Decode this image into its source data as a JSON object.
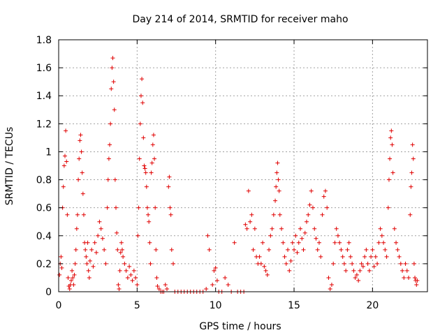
{
  "chart_data": {
    "type": "scatter",
    "title": "Day 214 of 2014, SRMTID for receiver maho",
    "xlabel": "GPS time / hours",
    "ylabel": "SRMTID / TECUs",
    "xlim": [
      0,
      23.5
    ],
    "ylim": [
      0,
      1.8
    ],
    "xticks": [
      0,
      5,
      10,
      15,
      20
    ],
    "xtick_labels": [
      "0",
      "5",
      "10",
      "15",
      "20"
    ],
    "yticks": [
      0,
      0.2,
      0.4,
      0.6,
      0.8,
      1.0,
      1.2,
      1.4,
      1.6,
      1.8
    ],
    "ytick_labels": [
      "0",
      "0.2",
      "0.4",
      "0.6",
      "0.8",
      "1",
      "1.2",
      "1.4",
      "1.6",
      "1.8"
    ],
    "grid": true,
    "marker": "+",
    "marker_color": "#e00000",
    "series": [
      {
        "name": "SRMTID",
        "points": [
          [
            0.05,
            0.12
          ],
          [
            0.1,
            0.2
          ],
          [
            0.15,
            0.25
          ],
          [
            0.2,
            0.17
          ],
          [
            0.25,
            0.6
          ],
          [
            0.3,
            0.75
          ],
          [
            0.35,
            0.9
          ],
          [
            0.4,
            0.97
          ],
          [
            0.45,
            1.15
          ],
          [
            0.5,
            0.93
          ],
          [
            0.55,
            0.55
          ],
          [
            0.6,
            0.1
          ],
          [
            0.65,
            0.04
          ],
          [
            0.7,
            0.02
          ],
          [
            0.75,
            0.05
          ],
          [
            0.8,
            0.08
          ],
          [
            0.85,
            0.15
          ],
          [
            0.9,
            0.1
          ],
          [
            0.95,
            0.05
          ],
          [
            1.0,
            0.12
          ],
          [
            1.05,
            0.2
          ],
          [
            1.1,
            0.3
          ],
          [
            1.15,
            0.45
          ],
          [
            1.2,
            0.55
          ],
          [
            1.25,
            0.8
          ],
          [
            1.3,
            0.95
          ],
          [
            1.35,
            1.08
          ],
          [
            1.4,
            1.12
          ],
          [
            1.45,
            1.0
          ],
          [
            1.5,
            0.85
          ],
          [
            1.55,
            0.7
          ],
          [
            1.6,
            0.55
          ],
          [
            1.65,
            0.35
          ],
          [
            1.7,
            0.3
          ],
          [
            1.75,
            0.25
          ],
          [
            1.8,
            0.2
          ],
          [
            1.85,
            0.35
          ],
          [
            1.9,
            0.15
          ],
          [
            1.95,
            0.1
          ],
          [
            2.0,
            0.22
          ],
          [
            2.1,
            0.3
          ],
          [
            2.2,
            0.18
          ],
          [
            2.3,
            0.35
          ],
          [
            2.4,
            0.28
          ],
          [
            2.5,
            0.4
          ],
          [
            2.6,
            0.5
          ],
          [
            2.7,
            0.45
          ],
          [
            2.8,
            0.38
          ],
          [
            2.9,
            0.3
          ],
          [
            3.0,
            0.2
          ],
          [
            3.1,
            0.6
          ],
          [
            3.15,
            0.8
          ],
          [
            3.2,
            0.95
          ],
          [
            3.25,
            1.05
          ],
          [
            3.3,
            1.2
          ],
          [
            3.35,
            1.45
          ],
          [
            3.4,
            1.6
          ],
          [
            3.45,
            1.67
          ],
          [
            3.5,
            1.5
          ],
          [
            3.55,
            1.3
          ],
          [
            3.6,
            0.8
          ],
          [
            3.65,
            0.6
          ],
          [
            3.7,
            0.42
          ],
          [
            3.75,
            0.3
          ],
          [
            3.8,
            0.05
          ],
          [
            3.85,
            0.02
          ],
          [
            3.9,
            0.15
          ],
          [
            3.95,
            0.28
          ],
          [
            4.0,
            0.35
          ],
          [
            4.05,
            0.3
          ],
          [
            4.1,
            0.25
          ],
          [
            4.2,
            0.2
          ],
          [
            4.3,
            0.15
          ],
          [
            4.4,
            0.1
          ],
          [
            4.5,
            0.18
          ],
          [
            4.6,
            0.12
          ],
          [
            4.7,
            0.08
          ],
          [
            4.8,
            0.15
          ],
          [
            4.9,
            0.1
          ],
          [
            5.0,
            0.05
          ],
          [
            5.05,
            0.4
          ],
          [
            5.1,
            0.6
          ],
          [
            5.15,
            0.95
          ],
          [
            5.2,
            1.2
          ],
          [
            5.25,
            1.4
          ],
          [
            5.3,
            1.52
          ],
          [
            5.35,
            1.35
          ],
          [
            5.4,
            1.1
          ],
          [
            5.45,
            0.9
          ],
          [
            5.5,
            0.88
          ],
          [
            5.55,
            0.85
          ],
          [
            5.6,
            0.75
          ],
          [
            5.65,
            0.6
          ],
          [
            5.7,
            0.55
          ],
          [
            5.75,
            0.5
          ],
          [
            5.8,
            0.35
          ],
          [
            5.85,
            0.2
          ],
          [
            5.9,
            0.85
          ],
          [
            5.95,
            0.92
          ],
          [
            6.0,
            1.05
          ],
          [
            6.05,
            1.12
          ],
          [
            6.1,
            0.95
          ],
          [
            6.15,
            0.6
          ],
          [
            6.2,
            0.3
          ],
          [
            6.25,
            0.1
          ],
          [
            6.3,
            0.04
          ],
          [
            6.4,
            0.02
          ],
          [
            6.5,
            0.0
          ],
          [
            6.6,
            0.0
          ],
          [
            6.7,
            0.0
          ],
          [
            6.8,
            0.05
          ],
          [
            6.9,
            0.02
          ],
          [
            7.0,
            0.75
          ],
          [
            7.05,
            0.82
          ],
          [
            7.1,
            0.6
          ],
          [
            7.15,
            0.55
          ],
          [
            7.2,
            0.3
          ],
          [
            7.3,
            0.2
          ],
          [
            7.4,
            0.0
          ],
          [
            7.6,
            0.0
          ],
          [
            7.8,
            0.0
          ],
          [
            8.0,
            0.0
          ],
          [
            8.2,
            0.0
          ],
          [
            8.4,
            0.0
          ],
          [
            8.6,
            0.0
          ],
          [
            8.8,
            0.0
          ],
          [
            9.0,
            0.0
          ],
          [
            9.2,
            0.0
          ],
          [
            9.4,
            0.02
          ],
          [
            9.5,
            0.4
          ],
          [
            9.6,
            0.3
          ],
          [
            9.8,
            0.05
          ],
          [
            9.9,
            0.15
          ],
          [
            10.0,
            0.17
          ],
          [
            10.1,
            0.08
          ],
          [
            10.2,
            0.0
          ],
          [
            10.4,
            0.0
          ],
          [
            10.6,
            0.1
          ],
          [
            10.8,
            0.05
          ],
          [
            11.0,
            0.0
          ],
          [
            11.2,
            0.35
          ],
          [
            11.4,
            0.0
          ],
          [
            11.6,
            0.0
          ],
          [
            11.8,
            0.0
          ],
          [
            11.9,
            0.48
          ],
          [
            12.0,
            0.45
          ],
          [
            12.1,
            0.72
          ],
          [
            12.2,
            0.5
          ],
          [
            12.3,
            0.55
          ],
          [
            12.4,
            0.3
          ],
          [
            12.5,
            0.45
          ],
          [
            12.6,
            0.25
          ],
          [
            12.7,
            0.2
          ],
          [
            12.8,
            0.25
          ],
          [
            12.9,
            0.2
          ],
          [
            13.0,
            0.35
          ],
          [
            13.1,
            0.18
          ],
          [
            13.2,
            0.15
          ],
          [
            13.3,
            0.12
          ],
          [
            13.4,
            0.3
          ],
          [
            13.5,
            0.4
          ],
          [
            13.6,
            0.45
          ],
          [
            13.7,
            0.55
          ],
          [
            13.8,
            0.65
          ],
          [
            13.85,
            0.75
          ],
          [
            13.9,
            0.85
          ],
          [
            13.95,
            0.92
          ],
          [
            14.0,
            0.8
          ],
          [
            14.05,
            0.72
          ],
          [
            14.1,
            0.55
          ],
          [
            14.2,
            0.45
          ],
          [
            14.3,
            0.35
          ],
          [
            14.4,
            0.25
          ],
          [
            14.5,
            0.2
          ],
          [
            14.6,
            0.3
          ],
          [
            14.7,
            0.15
          ],
          [
            14.8,
            0.22
          ],
          [
            14.9,
            0.35
          ],
          [
            15.0,
            0.3
          ],
          [
            15.1,
            0.4
          ],
          [
            15.2,
            0.28
          ],
          [
            15.3,
            0.35
          ],
          [
            15.4,
            0.45
          ],
          [
            15.5,
            0.38
          ],
          [
            15.6,
            0.3
          ],
          [
            15.7,
            0.42
          ],
          [
            15.8,
            0.5
          ],
          [
            15.9,
            0.55
          ],
          [
            16.0,
            0.62
          ],
          [
            16.1,
            0.72
          ],
          [
            16.2,
            0.6
          ],
          [
            16.3,
            0.45
          ],
          [
            16.4,
            0.38
          ],
          [
            16.5,
            0.3
          ],
          [
            16.6,
            0.35
          ],
          [
            16.7,
            0.25
          ],
          [
            16.8,
            0.55
          ],
          [
            16.9,
            0.68
          ],
          [
            17.0,
            0.72
          ],
          [
            17.1,
            0.6
          ],
          [
            17.2,
            0.1
          ],
          [
            17.3,
            0.02
          ],
          [
            17.4,
            0.05
          ],
          [
            17.5,
            0.2
          ],
          [
            17.6,
            0.35
          ],
          [
            17.7,
            0.45
          ],
          [
            17.8,
            0.4
          ],
          [
            17.9,
            0.35
          ],
          [
            18.0,
            0.3
          ],
          [
            18.1,
            0.25
          ],
          [
            18.2,
            0.2
          ],
          [
            18.3,
            0.15
          ],
          [
            18.4,
            0.3
          ],
          [
            18.5,
            0.35
          ],
          [
            18.6,
            0.25
          ],
          [
            18.7,
            0.2
          ],
          [
            18.8,
            0.15
          ],
          [
            18.9,
            0.1
          ],
          [
            19.0,
            0.12
          ],
          [
            19.1,
            0.08
          ],
          [
            19.2,
            0.15
          ],
          [
            19.3,
            0.2
          ],
          [
            19.4,
            0.18
          ],
          [
            19.5,
            0.25
          ],
          [
            19.6,
            0.3
          ],
          [
            19.7,
            0.2
          ],
          [
            19.8,
            0.15
          ],
          [
            19.9,
            0.25
          ],
          [
            20.0,
            0.3
          ],
          [
            20.1,
            0.18
          ],
          [
            20.2,
            0.25
          ],
          [
            20.3,
            0.2
          ],
          [
            20.4,
            0.35
          ],
          [
            20.5,
            0.45
          ],
          [
            20.6,
            0.4
          ],
          [
            20.7,
            0.35
          ],
          [
            20.8,
            0.3
          ],
          [
            20.9,
            0.25
          ],
          [
            21.0,
            0.6
          ],
          [
            21.05,
            0.8
          ],
          [
            21.1,
            0.95
          ],
          [
            21.15,
            1.1
          ],
          [
            21.2,
            1.15
          ],
          [
            21.25,
            1.05
          ],
          [
            21.3,
            0.85
          ],
          [
            21.4,
            0.45
          ],
          [
            21.5,
            0.35
          ],
          [
            21.6,
            0.3
          ],
          [
            21.7,
            0.25
          ],
          [
            21.8,
            0.2
          ],
          [
            21.9,
            0.15
          ],
          [
            22.0,
            0.1
          ],
          [
            22.1,
            0.2
          ],
          [
            22.2,
            0.15
          ],
          [
            22.3,
            0.1
          ],
          [
            22.4,
            0.55
          ],
          [
            22.45,
            0.75
          ],
          [
            22.5,
            0.85
          ],
          [
            22.55,
            1.05
          ],
          [
            22.6,
            0.95
          ],
          [
            22.65,
            0.2
          ],
          [
            22.7,
            0.1
          ],
          [
            22.75,
            0.08
          ],
          [
            22.8,
            0.05
          ],
          [
            22.85,
            0.08
          ]
        ]
      }
    ]
  }
}
